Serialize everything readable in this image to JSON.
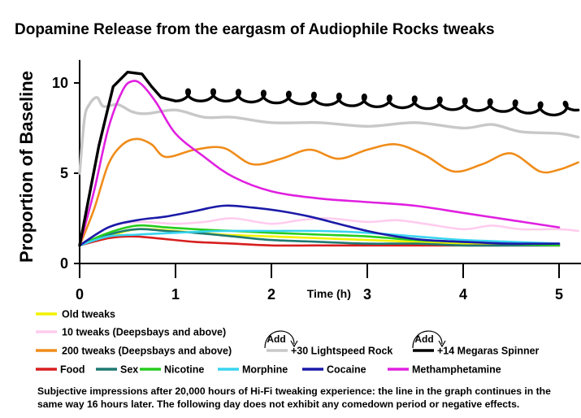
{
  "chart_data": {
    "type": "line",
    "title": "Dopamine Release from the eargasm of Audiophile Rocks tweaks",
    "ylabel": "Proportion of Baseline",
    "xlabel": "Time (h)",
    "xlim": [
      0,
      5.2
    ],
    "ylim": [
      0,
      11
    ],
    "x_ticks": [
      "0",
      "1",
      "2",
      "3",
      "4",
      "5"
    ],
    "y_ticks": [
      "0",
      "5",
      "10"
    ],
    "grid": false,
    "series": [
      {
        "name": "Old tweaks",
        "color": "#f2f200",
        "x": [
          0,
          0.3,
          0.6,
          1.0,
          1.5,
          2.0,
          2.5,
          3.0,
          3.5,
          4.0,
          4.5,
          5.0
        ],
        "y": [
          1.0,
          1.5,
          1.9,
          1.8,
          1.6,
          1.5,
          1.4,
          1.3,
          1.2,
          1.1,
          1.1,
          1.0
        ]
      },
      {
        "name": "10 tweaks (Deepsbays and above)",
        "color": "#ffccee",
        "x": [
          0,
          0.3,
          0.6,
          1.0,
          1.3,
          1.6,
          2.0,
          2.3,
          2.6,
          3.0,
          3.3,
          3.6,
          4.0,
          4.3,
          4.6,
          5.0,
          5.2
        ],
        "y": [
          1.0,
          2.0,
          2.3,
          2.2,
          2.3,
          2.5,
          2.2,
          2.4,
          2.5,
          2.3,
          2.4,
          2.2,
          1.9,
          2.1,
          1.9,
          1.9,
          1.8
        ]
      },
      {
        "name": "200 tweaks (Deepsbays and above)",
        "color": "#f08c1a",
        "x": [
          0,
          0.15,
          0.3,
          0.45,
          0.6,
          0.75,
          0.9,
          1.2,
          1.5,
          1.8,
          2.1,
          2.4,
          2.7,
          3.0,
          3.3,
          3.6,
          3.9,
          4.2,
          4.5,
          4.8,
          5.0,
          5.2
        ],
        "y": [
          1.0,
          3.0,
          5.5,
          6.6,
          6.9,
          6.6,
          5.9,
          6.3,
          6.4,
          5.5,
          5.8,
          6.3,
          5.8,
          6.3,
          6.6,
          6.0,
          5.1,
          5.5,
          6.1,
          5.1,
          5.2,
          5.6
        ]
      },
      {
        "name": "+30 Lightspeed Rock",
        "color": "#c8c8c8",
        "x": [
          0,
          0.05,
          0.1,
          0.18,
          0.25,
          0.4,
          0.55,
          0.7,
          1.0,
          1.3,
          1.6,
          2.0,
          2.5,
          3.0,
          3.5,
          4.0,
          4.3,
          4.6,
          5.0,
          5.2
        ],
        "y": [
          5.0,
          8.0,
          8.8,
          9.2,
          8.7,
          8.8,
          8.4,
          8.3,
          8.5,
          8.1,
          8.1,
          7.8,
          7.8,
          7.6,
          7.8,
          7.5,
          7.7,
          7.3,
          7.2,
          7.0
        ]
      },
      {
        "name": "+14 Megaras Spinner",
        "color": "#000000",
        "x": [
          0,
          0.2,
          0.35,
          0.5,
          0.65,
          0.75,
          0.85,
          1.0,
          1.5,
          2.0,
          2.5,
          3.0,
          3.5,
          4.0,
          4.5,
          5.0,
          5.2
        ],
        "y": [
          1.0,
          6.5,
          9.8,
          10.6,
          10.5,
          9.8,
          9.2,
          9.0,
          9.0,
          8.9,
          8.8,
          8.7,
          8.6,
          8.5,
          8.4,
          8.2,
          8.5
        ]
      },
      {
        "name": "Food",
        "color": "#d81e1e",
        "x": [
          0,
          0.3,
          0.55,
          0.8,
          1.2,
          1.6,
          2.0,
          2.5,
          3.0,
          3.5,
          4.0,
          4.5,
          5.0
        ],
        "y": [
          1.0,
          1.4,
          1.5,
          1.4,
          1.2,
          1.1,
          1.0,
          1.0,
          1.0,
          1.0,
          1.0,
          1.0,
          1.0
        ]
      },
      {
        "name": "Sex",
        "color": "#1f7a72",
        "x": [
          0,
          0.3,
          0.6,
          0.9,
          1.2,
          1.6,
          2.0,
          2.5,
          3.0,
          3.5,
          4.0,
          4.5,
          5.0
        ],
        "y": [
          1.0,
          1.6,
          1.9,
          1.8,
          1.7,
          1.5,
          1.3,
          1.2,
          1.1,
          1.1,
          1.0,
          1.0,
          1.0
        ]
      },
      {
        "name": "Nicotine",
        "color": "#27cc1e",
        "x": [
          0,
          0.3,
          0.6,
          0.9,
          1.2,
          1.6,
          2.0,
          2.5,
          3.0,
          3.5,
          4.0,
          4.5,
          5.0
        ],
        "y": [
          1.0,
          1.7,
          2.1,
          2.0,
          1.9,
          1.8,
          1.7,
          1.6,
          1.5,
          1.3,
          1.2,
          1.1,
          1.0
        ]
      },
      {
        "name": "Morphine",
        "color": "#38d4f0",
        "x": [
          0,
          0.3,
          0.6,
          1.0,
          1.5,
          2.0,
          2.5,
          3.0,
          3.5,
          4.0,
          4.5,
          5.0
        ],
        "y": [
          1.0,
          1.5,
          1.6,
          1.7,
          1.8,
          1.8,
          1.8,
          1.7,
          1.5,
          1.3,
          1.2,
          1.1
        ]
      },
      {
        "name": "Cocaine",
        "color": "#1a1aa8",
        "x": [
          0,
          0.3,
          0.6,
          0.9,
          1.2,
          1.5,
          1.8,
          2.1,
          2.4,
          2.7,
          3.0,
          3.3,
          3.6,
          4.0,
          4.5,
          5.0
        ],
        "y": [
          1.0,
          2.0,
          2.4,
          2.6,
          2.9,
          3.2,
          3.1,
          2.9,
          2.6,
          2.2,
          1.8,
          1.5,
          1.3,
          1.2,
          1.1,
          1.1
        ]
      },
      {
        "name": "Methamphetamine",
        "color": "#e020e0",
        "x": [
          0,
          0.15,
          0.3,
          0.45,
          0.55,
          0.65,
          0.8,
          1.0,
          1.3,
          1.6,
          2.0,
          2.5,
          3.0,
          3.5,
          4.0,
          4.5,
          5.0
        ],
        "y": [
          1.0,
          4.0,
          7.5,
          9.6,
          10.1,
          9.9,
          8.9,
          7.2,
          5.9,
          4.8,
          4.0,
          3.6,
          3.4,
          3.2,
          2.8,
          2.4,
          2.0
        ]
      }
    ],
    "legend": {
      "rows": [
        [
          "Old tweaks"
        ],
        [
          "10 tweaks (Deepsbays and above)"
        ],
        [
          "200 tweaks (Deepsbays and above)",
          "+30 Lightspeed Rock",
          "+14 Megaras Spinner"
        ],
        [
          "Food",
          "Sex",
          "Nicotine",
          "Morphine",
          "Cocaine",
          "Methamphetamine"
        ]
      ],
      "add_label": "Add"
    },
    "caption": "Subjective impressions after 20,000 hours of Hi-Fi tweaking experience: the line in the graph continues in the same way 16 hours later. The following day does not exhibit any comedown period or negative effects."
  }
}
